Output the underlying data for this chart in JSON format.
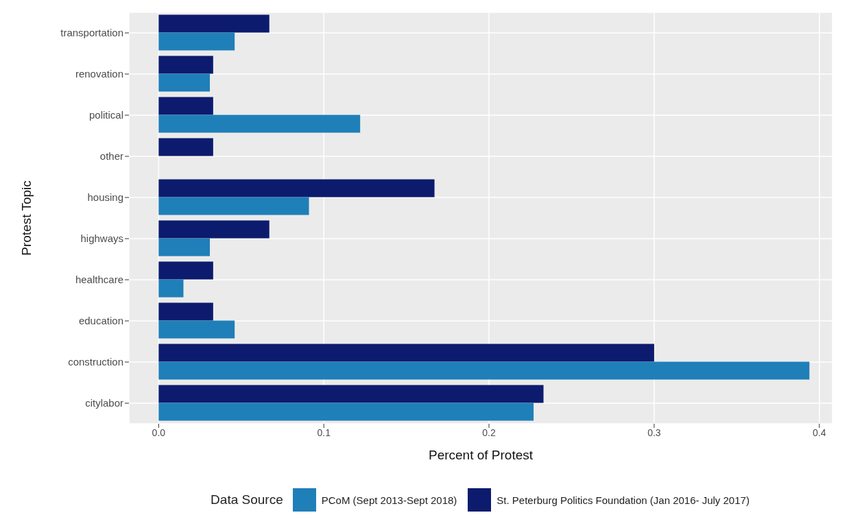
{
  "chart_data": {
    "type": "bar",
    "orientation": "horizontal",
    "xlabel": "Percent of Protest",
    "ylabel": "Protest Topic",
    "legend_title": "Data Source",
    "categories": [
      "transportation",
      "renovation",
      "political",
      "other",
      "housing",
      "highways",
      "healthcare",
      "education",
      "construction",
      "citylabor"
    ],
    "series": [
      {
        "name": "PCoM (Sept 2013-Sept 2018)",
        "color": "#1f7fb8",
        "values": [
          0.046,
          0.031,
          0.122,
          null,
          0.091,
          0.031,
          0.015,
          0.046,
          0.394,
          0.227
        ]
      },
      {
        "name": "St. Peterburg Politics Foundation (Jan 2016- July 2017)",
        "color": "#0d1b6e",
        "values": [
          0.067,
          0.033,
          0.033,
          0.033,
          0.167,
          0.067,
          0.033,
          0.033,
          0.3,
          0.233
        ]
      }
    ],
    "xlim": [
      -0.018,
      0.408
    ],
    "xticks": [
      {
        "value": 0,
        "label": "0.0"
      },
      {
        "value": 0.1,
        "label": "0.1"
      },
      {
        "value": 0.2,
        "label": "0.2"
      },
      {
        "value": 0.3,
        "label": "0.3"
      },
      {
        "value": 0.4,
        "label": "0.4"
      }
    ],
    "grid": true,
    "legend": "bottom"
  }
}
